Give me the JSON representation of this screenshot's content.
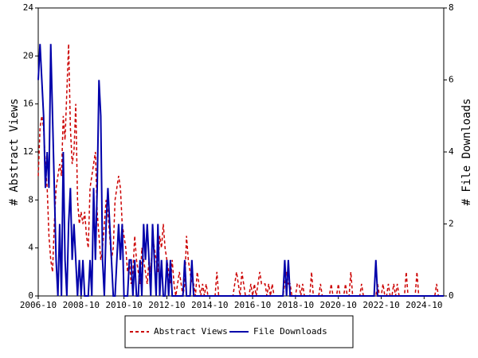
{
  "chart_data": {
    "type": "line",
    "y_label": "# Abstract Views",
    "y2_label": "# File Downloads",
    "x": [
      "2006-10",
      "2006-11",
      "2006-12",
      "2007-01",
      "2007-02",
      "2007-03",
      "2007-04",
      "2007-05",
      "2007-06",
      "2007-07",
      "2007-08",
      "2007-09",
      "2007-10",
      "2007-11",
      "2007-12",
      "2008-01",
      "2008-02",
      "2008-03",
      "2008-04",
      "2008-05",
      "2008-06",
      "2008-07",
      "2008-08",
      "2008-09",
      "2008-10",
      "2008-11",
      "2008-12",
      "2009-01",
      "2009-02",
      "2009-03",
      "2009-04",
      "2009-05",
      "2009-06",
      "2009-07",
      "2009-08",
      "2009-09",
      "2009-10",
      "2009-11",
      "2009-12",
      "2010-01",
      "2010-02",
      "2010-03",
      "2010-04",
      "2010-05",
      "2010-06",
      "2010-07",
      "2010-08",
      "2010-09",
      "2010-10",
      "2010-11",
      "2010-12",
      "2011-01",
      "2011-02",
      "2011-03",
      "2011-04",
      "2011-05",
      "2011-06",
      "2011-07",
      "2011-08",
      "2011-09",
      "2011-10",
      "2011-11",
      "2011-12",
      "2012-01",
      "2012-02",
      "2012-03",
      "2012-04",
      "2012-05",
      "2012-06",
      "2012-07",
      "2012-08",
      "2012-09",
      "2012-10",
      "2012-11",
      "2012-12",
      "2013-01",
      "2013-02",
      "2013-03",
      "2013-04",
      "2013-05",
      "2013-06",
      "2013-07",
      "2013-08",
      "2013-09",
      "2013-10",
      "2013-11",
      "2013-12",
      "2014-01",
      "2014-02",
      "2014-03",
      "2014-04",
      "2014-05",
      "2014-06",
      "2014-07",
      "2014-08",
      "2014-09",
      "2014-10",
      "2014-11",
      "2014-12",
      "2015-01",
      "2015-02",
      "2015-03",
      "2015-04",
      "2015-05",
      "2015-06",
      "2015-07",
      "2015-08",
      "2015-09",
      "2015-10",
      "2015-11",
      "2015-12",
      "2016-01",
      "2016-02",
      "2016-03",
      "2016-04",
      "2016-05",
      "2016-06",
      "2016-07",
      "2016-08",
      "2016-09",
      "2016-10",
      "2016-11",
      "2016-12",
      "2017-01",
      "2017-02",
      "2017-03",
      "2017-04",
      "2017-05",
      "2017-06",
      "2017-07",
      "2017-08",
      "2017-09",
      "2017-10",
      "2017-11",
      "2017-12",
      "2018-01",
      "2018-02",
      "2018-03",
      "2018-04",
      "2018-05",
      "2018-06",
      "2018-07",
      "2018-08",
      "2018-09",
      "2018-10",
      "2018-11",
      "2018-12",
      "2019-01",
      "2019-02",
      "2019-03",
      "2019-04",
      "2019-05",
      "2019-06",
      "2019-07",
      "2019-08",
      "2019-09",
      "2019-10",
      "2019-11",
      "2019-12",
      "2020-01",
      "2020-02",
      "2020-03",
      "2020-04",
      "2020-05",
      "2020-06",
      "2020-07",
      "2020-08",
      "2020-09",
      "2020-10",
      "2020-11",
      "2020-12",
      "2021-01",
      "2021-02",
      "2021-03",
      "2021-04",
      "2021-05",
      "2021-06",
      "2021-07",
      "2021-08",
      "2021-09",
      "2021-10",
      "2021-11",
      "2021-12",
      "2022-01",
      "2022-02",
      "2022-03",
      "2022-04",
      "2022-05",
      "2022-06",
      "2022-07",
      "2022-08",
      "2022-09",
      "2022-10",
      "2022-11",
      "2022-12",
      "2023-01",
      "2023-02",
      "2023-03",
      "2023-04",
      "2023-05",
      "2023-06",
      "2023-07",
      "2023-08",
      "2023-09",
      "2023-10",
      "2023-11",
      "2023-12",
      "2024-01",
      "2024-02",
      "2024-03",
      "2024-04",
      "2024-05",
      "2024-06",
      "2024-07",
      "2024-08",
      "2024-09",
      "2024-10",
      "2024-11",
      "2024-12",
      "2025-01",
      "2025-02",
      "2025-03",
      "2025-04",
      "2025-05",
      "2025-06",
      "2025-07",
      "2025-08",
      "2025-09"
    ],
    "series": [
      {
        "name": "Abstract Views",
        "color": "#cc0000",
        "dash": true,
        "axis": "y",
        "values": [
          10,
          14,
          15,
          14,
          11,
          9,
          5,
          3,
          2,
          6,
          9,
          10,
          11,
          10,
          15,
          13,
          17,
          21,
          14,
          11,
          12,
          16,
          8,
          6,
          7,
          6,
          7,
          5,
          4,
          9,
          10,
          11,
          12,
          7,
          5,
          3,
          4,
          6,
          8,
          7,
          5,
          3,
          4,
          8,
          9,
          10,
          9,
          6,
          5,
          4,
          2,
          3,
          1,
          2,
          5,
          3,
          2,
          1,
          4,
          3,
          2,
          1,
          3,
          2,
          5,
          4,
          3,
          2,
          5,
          4,
          6,
          4,
          3,
          2,
          1,
          3,
          1,
          0,
          1,
          2,
          1,
          0,
          1,
          5,
          3,
          2,
          1,
          1,
          0,
          2,
          1,
          0,
          1,
          0,
          1,
          0,
          0,
          0,
          0,
          0,
          2,
          0,
          0,
          0,
          0,
          0,
          0,
          0,
          0,
          0,
          1,
          2,
          1,
          0,
          2,
          1,
          0,
          0,
          0,
          1,
          0,
          1,
          0,
          1,
          2,
          1,
          1,
          1,
          0,
          1,
          0,
          1,
          0,
          0,
          0,
          0,
          0,
          0,
          1,
          2,
          1,
          1,
          0,
          0,
          0,
          1,
          1,
          0,
          1,
          0,
          0,
          0,
          0,
          2,
          0,
          0,
          0,
          0,
          1,
          0,
          0,
          0,
          0,
          0,
          1,
          0,
          0,
          0,
          1,
          0,
          0,
          0,
          1,
          0,
          0,
          2,
          0,
          0,
          0,
          0,
          0,
          1,
          0,
          0,
          0,
          0,
          0,
          0,
          0,
          0,
          1,
          0,
          0,
          1,
          0,
          0,
          1,
          0,
          0,
          1,
          0,
          1,
          0,
          0,
          0,
          0,
          2,
          0,
          0,
          0,
          0,
          0,
          2,
          0,
          0,
          0,
          0,
          0,
          0,
          0,
          0,
          0,
          0,
          1,
          0,
          0,
          0,
          0
        ]
      },
      {
        "name": "File Downloads",
        "color": "#0000aa",
        "dash": false,
        "axis": "y2",
        "values": [
          6,
          7,
          6,
          5,
          3,
          4,
          3,
          7,
          5,
          3,
          1,
          0,
          2,
          0,
          4,
          1,
          0,
          2,
          3,
          1,
          2,
          1,
          0,
          1,
          0,
          1,
          0,
          0,
          0,
          1,
          0,
          3,
          1,
          3,
          6,
          5,
          1,
          0,
          2,
          3,
          2,
          1,
          0,
          0,
          1,
          2,
          1,
          2,
          0,
          0,
          0,
          1,
          1,
          0,
          1,
          0,
          0,
          1,
          0,
          2,
          1,
          2,
          1,
          0,
          2,
          1,
          0,
          2,
          0,
          1,
          0,
          0,
          1,
          0,
          1,
          0,
          0,
          0,
          0,
          0,
          0,
          0,
          1,
          0,
          0,
          0,
          1,
          0,
          0,
          0,
          0,
          0,
          0,
          0,
          0,
          0,
          0,
          0,
          0,
          0,
          0,
          0,
          0,
          0,
          0,
          0,
          0,
          0,
          0,
          0,
          0,
          0,
          0,
          0,
          0,
          0,
          0,
          0,
          0,
          0,
          0,
          0,
          0,
          0,
          0,
          0,
          0,
          0,
          0,
          0,
          0,
          0,
          0,
          0,
          0,
          0,
          0,
          0,
          1,
          0,
          1,
          0,
          0,
          0,
          0,
          0,
          0,
          0,
          0,
          0,
          0,
          0,
          0,
          0,
          0,
          0,
          0,
          0,
          0,
          0,
          0,
          0,
          0,
          0,
          0,
          0,
          0,
          0,
          0,
          0,
          0,
          0,
          0,
          0,
          0,
          0,
          0,
          0,
          0,
          0,
          0,
          0,
          0,
          0,
          0,
          0,
          0,
          0,
          0,
          1,
          0,
          0,
          0,
          0,
          0,
          0,
          0,
          0,
          0,
          0,
          0,
          0,
          0,
          0,
          0,
          0,
          0,
          0,
          0,
          0,
          0,
          0,
          0,
          0,
          0,
          0,
          0,
          0,
          0,
          0,
          0,
          0,
          0,
          0,
          0,
          0,
          0,
          0
        ]
      }
    ],
    "xlim": [
      "2006-10",
      "2025-09"
    ],
    "xticks": [
      "2006-10",
      "2008-10",
      "2010-10",
      "2012-10",
      "2014-10",
      "2016-10",
      "2018-10",
      "2020-10",
      "2022-10",
      "2024-10"
    ],
    "ylim": [
      0,
      24
    ],
    "yticks": [
      0,
      4,
      8,
      12,
      16,
      20,
      24
    ],
    "y2lim": [
      0,
      8
    ],
    "y2ticks": [
      0,
      2,
      4,
      6,
      8
    ],
    "legend": "bottom"
  }
}
